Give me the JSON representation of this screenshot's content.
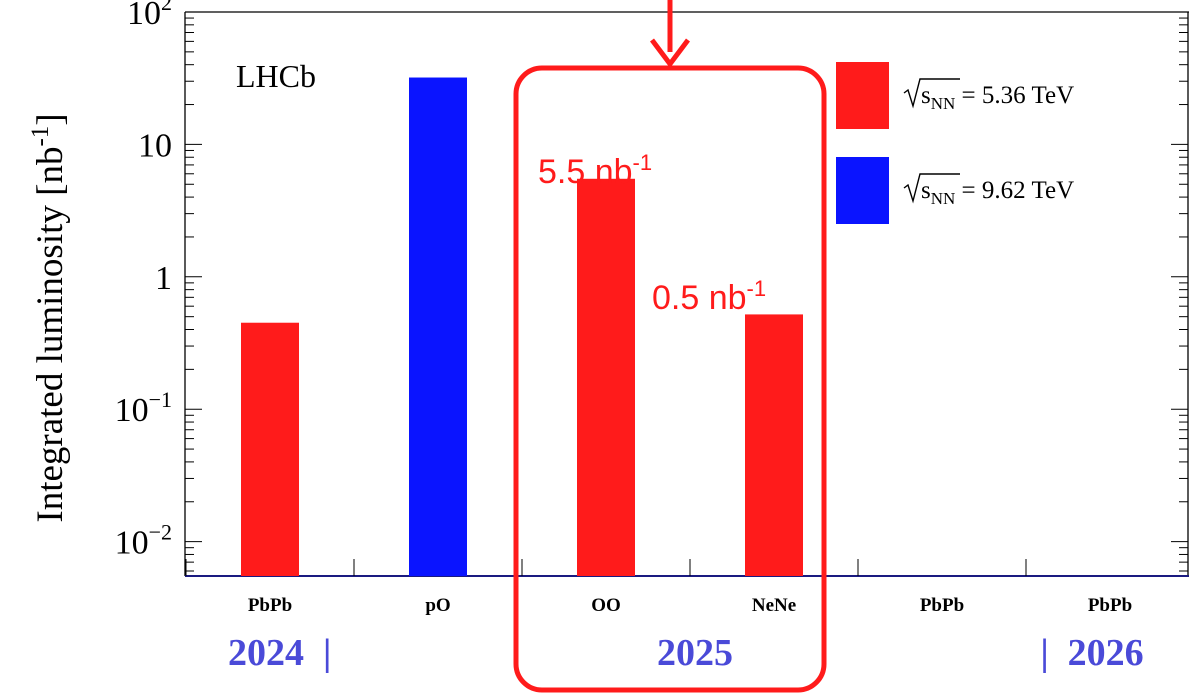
{
  "chart_data": {
    "type": "bar",
    "y_scale": "log",
    "ylim": [
      0.0055,
      100
    ],
    "ylabel": "Integrated luminosity [nb",
    "ylabel_sup": "-1",
    "ylabel_end": "]",
    "experiment_label": "LHCb",
    "yticks": [
      {
        "value": 100,
        "base": "10",
        "exp": "2"
      },
      {
        "value": 10,
        "base": "10",
        "exp": ""
      },
      {
        "value": 1,
        "base": "1",
        "exp": ""
      },
      {
        "value": 0.1,
        "base": "10",
        "exp": "−1"
      },
      {
        "value": 0.01,
        "base": "10",
        "exp": "−2"
      }
    ],
    "categories": [
      "PbPb",
      "pO",
      "OO",
      "NeNe",
      "PbPb",
      "PbPb"
    ],
    "values": [
      0.45,
      32,
      5.5,
      0.52,
      null,
      null
    ],
    "bar_colors": [
      "#ff1b1b",
      "#0a14ff",
      "#ff1b1b",
      "#ff1b1b",
      null,
      null
    ],
    "legend": [
      {
        "label_main": "s",
        "label_sub": "NN",
        "label_value": " = 5.36 TeV",
        "color": "#ff1b1b"
      },
      {
        "label_main": "s",
        "label_sub": "NN",
        "label_value": " = 9.62 TeV",
        "color": "#0a14ff"
      }
    ],
    "legend_position": "top-right",
    "annotations": [
      {
        "text": "5.5 nb",
        "sup": "-1",
        "category_index": 2
      },
      {
        "text": "0.5 nb",
        "sup": "-1",
        "category_index": 3
      }
    ],
    "highlight": {
      "categories": [
        "OO",
        "NeNe"
      ],
      "color": "#ff1b1b"
    },
    "years": [
      "2024  |",
      "2025",
      "|  2026"
    ],
    "year_color": "#4a4ad8"
  }
}
